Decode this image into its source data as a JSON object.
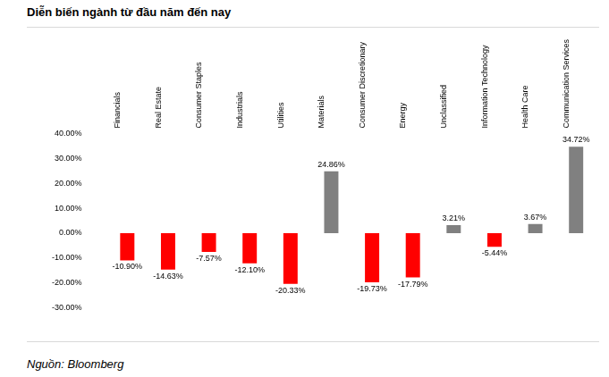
{
  "chart_data": {
    "type": "bar",
    "title": "Diễn biến ngành từ đầu năm đến nay",
    "source": "Nguồn: Bloomberg",
    "categories": [
      "Financials",
      "Real Estate",
      "Consumer Staples",
      "Industrials",
      "Utilities",
      "Materials",
      "Consumer Discretionary",
      "Energy",
      "Unclassified",
      "Information Technology",
      "Health Care",
      "Communication Services"
    ],
    "values": [
      -10.9,
      -14.63,
      -7.57,
      -12.1,
      -20.33,
      24.86,
      -19.73,
      -17.79,
      3.21,
      -5.44,
      3.67,
      34.72
    ],
    "value_labels": [
      "-10.90%",
      "-14.63%",
      "-7.57%",
      "-12.10%",
      "-20.33%",
      "24.86%",
      "-19.73%",
      "-17.79%",
      "3.21%",
      "-5.44%",
      "3.67%",
      "34.72%"
    ],
    "colors": [
      "#ff0000",
      "#ff0000",
      "#ff0000",
      "#ff0000",
      "#ff0000",
      "#808080",
      "#ff0000",
      "#ff0000",
      "#808080",
      "#ff0000",
      "#808080",
      "#808080"
    ],
    "ylim": [
      -30,
      40
    ],
    "yticks": [
      {
        "value": -30,
        "label": "-30.00%"
      },
      {
        "value": -20,
        "label": "-20.00%"
      },
      {
        "value": -10,
        "label": "-10.00%"
      },
      {
        "value": 0,
        "label": "0.00%"
      },
      {
        "value": 10,
        "label": "10.00%"
      },
      {
        "value": 20,
        "label": "20.00%"
      },
      {
        "value": 30,
        "label": "30.00%"
      },
      {
        "value": 40,
        "label": "40.00%"
      }
    ],
    "grid": false,
    "data_labels": true
  }
}
